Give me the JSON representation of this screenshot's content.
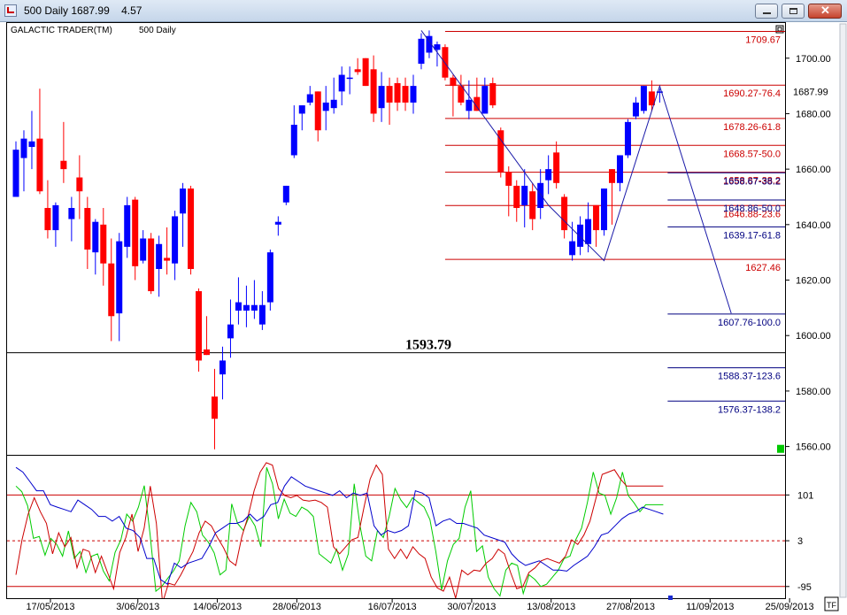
{
  "window": {
    "title": "500 Daily 1687.99    4.57",
    "buttons": [
      "minimize-icon",
      "maximize-icon",
      "close-icon"
    ]
  },
  "chart_data": [
    {
      "type": "candlestick",
      "title": "GALACTIC TRADER(TM)",
      "subtitle": "500 Daily",
      "last_price": "1687.99",
      "up_color": "#0000ff",
      "down_color": "#ff0000",
      "y_ticks": [
        "1700.00",
        "1680.00",
        "1660.00",
        "1640.00",
        "1620.00",
        "1600.00",
        "1580.00",
        "1560.00"
      ],
      "ylim": [
        1557,
        1713
      ],
      "x_ticks": [
        {
          "label": "17/05/2013",
          "i": 1
        },
        {
          "label": "3/06/2013",
          "i": 12
        },
        {
          "label": "14/06/2013",
          "i": 22
        },
        {
          "label": "28/06/2013",
          "i": 32
        },
        {
          "label": "16/07/2013",
          "i": 44
        },
        {
          "label": "30/07/2013",
          "i": 54
        },
        {
          "label": "13/08/2013",
          "i": 64
        },
        {
          "label": "27/08/2013",
          "i": 74
        },
        {
          "label": "11/09/2013",
          "i": 84
        },
        {
          "label": "25/09/2013",
          "i": 94
        }
      ],
      "candles": [
        {
          "o": 1650,
          "h": 1670,
          "l": 1650,
          "c": 1667
        },
        {
          "o": 1664,
          "h": 1674,
          "l": 1652,
          "c": 1671
        },
        {
          "o": 1668,
          "h": 1681,
          "l": 1660,
          "c": 1670
        },
        {
          "o": 1671,
          "h": 1689,
          "l": 1651,
          "c": 1652
        },
        {
          "o": 1646,
          "h": 1656,
          "l": 1635,
          "c": 1638
        },
        {
          "o": 1638,
          "h": 1648,
          "l": 1632,
          "c": 1647
        },
        {
          "o": 1663,
          "h": 1677,
          "l": 1655,
          "c": 1660
        },
        {
          "o": 1642,
          "h": 1650,
          "l": 1634,
          "c": 1646
        },
        {
          "o": 1657,
          "h": 1665,
          "l": 1642,
          "c": 1652
        },
        {
          "o": 1646,
          "h": 1650,
          "l": 1624,
          "c": 1631
        },
        {
          "o": 1630,
          "h": 1642,
          "l": 1622,
          "c": 1641
        },
        {
          "o": 1640,
          "h": 1646,
          "l": 1618,
          "c": 1626
        },
        {
          "o": 1626,
          "h": 1635,
          "l": 1598,
          "c": 1607
        },
        {
          "o": 1608,
          "h": 1637,
          "l": 1598,
          "c": 1634
        },
        {
          "o": 1632,
          "h": 1650,
          "l": 1628,
          "c": 1647
        },
        {
          "o": 1649,
          "h": 1650,
          "l": 1620,
          "c": 1625
        },
        {
          "o": 1627,
          "h": 1638,
          "l": 1626,
          "c": 1635
        },
        {
          "o": 1635,
          "h": 1637,
          "l": 1615,
          "c": 1616
        },
        {
          "o": 1624,
          "h": 1636,
          "l": 1614,
          "c": 1633
        },
        {
          "o": 1628,
          "h": 1639,
          "l": 1622,
          "c": 1627
        },
        {
          "o": 1626,
          "h": 1645,
          "l": 1620,
          "c": 1643
        },
        {
          "o": 1644,
          "h": 1655,
          "l": 1632,
          "c": 1653
        },
        {
          "o": 1653,
          "h": 1654,
          "l": 1622,
          "c": 1624
        },
        {
          "o": 1616,
          "h": 1617,
          "l": 1587,
          "c": 1591
        },
        {
          "o": 1595,
          "h": 1607,
          "l": 1593,
          "c": 1593
        },
        {
          "o": 1578,
          "h": 1588,
          "l": 1559,
          "c": 1570
        },
        {
          "o": 1586,
          "h": 1596,
          "l": 1577,
          "c": 1591
        },
        {
          "o": 1599,
          "h": 1613,
          "l": 1592,
          "c": 1604
        },
        {
          "o": 1609,
          "h": 1621,
          "l": 1604,
          "c": 1612
        },
        {
          "o": 1609,
          "h": 1618,
          "l": 1603,
          "c": 1611
        },
        {
          "o": 1609,
          "h": 1620,
          "l": 1606,
          "c": 1611
        },
        {
          "o": 1604,
          "h": 1616,
          "l": 1602,
          "c": 1611
        },
        {
          "o": 1612,
          "h": 1631,
          "l": 1609,
          "c": 1630
        },
        {
          "o": 1640,
          "h": 1643,
          "l": 1636,
          "c": 1641
        },
        {
          "o": 1648,
          "h": 1654,
          "l": 1647,
          "c": 1654
        },
        {
          "o": 1665,
          "h": 1683,
          "l": 1664,
          "c": 1676
        },
        {
          "o": 1680,
          "h": 1683,
          "l": 1674,
          "c": 1683
        },
        {
          "o": 1684,
          "h": 1690,
          "l": 1683,
          "c": 1687
        },
        {
          "o": 1688,
          "h": 1688,
          "l": 1670,
          "c": 1674
        },
        {
          "o": 1681,
          "h": 1690,
          "l": 1674,
          "c": 1684
        },
        {
          "o": 1682,
          "h": 1693,
          "l": 1680,
          "c": 1685
        },
        {
          "o": 1688,
          "h": 1697,
          "l": 1683,
          "c": 1694
        },
        {
          "o": 1693,
          "h": 1697,
          "l": 1687,
          "c": 1693
        },
        {
          "o": 1696,
          "h": 1700,
          "l": 1694,
          "c": 1695
        },
        {
          "o": 1700,
          "h": 1700,
          "l": 1690,
          "c": 1690
        },
        {
          "o": 1696,
          "h": 1701,
          "l": 1677,
          "c": 1680
        },
        {
          "o": 1682,
          "h": 1695,
          "l": 1677,
          "c": 1690
        },
        {
          "o": 1690,
          "h": 1693,
          "l": 1676,
          "c": 1684
        },
        {
          "o": 1691,
          "h": 1693,
          "l": 1681,
          "c": 1684
        },
        {
          "o": 1690,
          "h": 1693,
          "l": 1681,
          "c": 1684
        },
        {
          "o": 1684,
          "h": 1694,
          "l": 1680,
          "c": 1690
        },
        {
          "o": 1698,
          "h": 1709,
          "l": 1696,
          "c": 1707
        },
        {
          "o": 1702,
          "h": 1710,
          "l": 1700,
          "c": 1708
        },
        {
          "o": 1703,
          "h": 1706,
          "l": 1697,
          "c": 1705
        },
        {
          "o": 1704,
          "h": 1705,
          "l": 1692,
          "c": 1693
        },
        {
          "o": 1693,
          "h": 1694,
          "l": 1679,
          "c": 1690
        },
        {
          "o": 1690,
          "h": 1694,
          "l": 1683,
          "c": 1684
        },
        {
          "o": 1681,
          "h": 1692,
          "l": 1678,
          "c": 1685
        },
        {
          "o": 1686,
          "h": 1693,
          "l": 1681,
          "c": 1681
        },
        {
          "o": 1680,
          "h": 1693,
          "l": 1680,
          "c": 1690
        },
        {
          "o": 1691,
          "h": 1693,
          "l": 1682,
          "c": 1683
        },
        {
          "o": 1674,
          "h": 1675,
          "l": 1657,
          "c": 1659
        },
        {
          "o": 1659,
          "h": 1661,
          "l": 1643,
          "c": 1654
        },
        {
          "o": 1654,
          "h": 1656,
          "l": 1641,
          "c": 1646
        },
        {
          "o": 1647,
          "h": 1660,
          "l": 1639,
          "c": 1654
        },
        {
          "o": 1652,
          "h": 1655,
          "l": 1638,
          "c": 1642
        },
        {
          "o": 1646,
          "h": 1660,
          "l": 1642,
          "c": 1655
        },
        {
          "o": 1656,
          "h": 1665,
          "l": 1651,
          "c": 1660
        },
        {
          "o": 1666,
          "h": 1670,
          "l": 1653,
          "c": 1655
        },
        {
          "o": 1650,
          "h": 1651,
          "l": 1635,
          "c": 1638
        },
        {
          "o": 1629,
          "h": 1641,
          "l": 1627,
          "c": 1634
        },
        {
          "o": 1632,
          "h": 1643,
          "l": 1629,
          "c": 1640
        },
        {
          "o": 1633,
          "h": 1648,
          "l": 1630,
          "c": 1642
        },
        {
          "o": 1647,
          "h": 1647,
          "l": 1632,
          "c": 1638
        },
        {
          "o": 1638,
          "h": 1653,
          "l": 1636,
          "c": 1653
        },
        {
          "o": 1660,
          "h": 1660,
          "l": 1640,
          "c": 1655
        },
        {
          "o": 1655,
          "h": 1665,
          "l": 1652,
          "c": 1665
        },
        {
          "o": 1665,
          "h": 1678,
          "l": 1664,
          "c": 1677
        },
        {
          "o": 1679,
          "h": 1686,
          "l": 1678,
          "c": 1684
        },
        {
          "o": 1681,
          "h": 1690,
          "l": 1680,
          "c": 1690
        },
        {
          "o": 1688,
          "h": 1692,
          "l": 1681,
          "c": 1683
        },
        {
          "o": 1688,
          "h": 1689,
          "l": 1684,
          "c": 1688
        }
      ],
      "zigzag": [
        {
          "i": 51,
          "v": 1710
        },
        {
          "i": 67,
          "v": 1647
        },
        {
          "i": 74,
          "v": 1627
        },
        {
          "i": 81,
          "v": 1690
        },
        {
          "i": 90,
          "v": 1608
        }
      ],
      "levels": [
        {
          "label": "1709.67",
          "v": 1709.67,
          "color": "#cc0000",
          "start": 54
        },
        {
          "label": "1690.27-76.4",
          "v": 1690.27,
          "color": "#cc0000",
          "start": 54
        },
        {
          "label": "1678.26-61.8",
          "v": 1678.26,
          "color": "#cc0000",
          "start": 54
        },
        {
          "label": "1668.57-50.0",
          "v": 1668.57,
          "color": "#cc0000",
          "start": 54
        },
        {
          "label": "1658.87-38.2",
          "v": 1658.87,
          "color": "#cc0000",
          "start": 54
        },
        {
          "label": "1646.88-23.6",
          "v": 1646.88,
          "color": "#cc0000",
          "start": 54
        },
        {
          "label": "1627.46",
          "v": 1627.46,
          "color": "#cc0000",
          "start": 54
        },
        {
          "label": "1658.67-38.2",
          "v": 1658.67,
          "color": "#000080",
          "start": 82
        },
        {
          "label": "1648.86-50.0",
          "v": 1648.86,
          "color": "#000080",
          "start": 82
        },
        {
          "label": "1639.17-61.8",
          "v": 1639.17,
          "color": "#000080",
          "start": 82
        },
        {
          "label": "1607.76-100.0",
          "v": 1607.76,
          "color": "#000080",
          "start": 82
        },
        {
          "label": "1588.37-123.6",
          "v": 1588.37,
          "color": "#000080",
          "start": 82
        },
        {
          "label": "1576.37-138.2",
          "v": 1576.37,
          "color": "#000080",
          "start": 82
        }
      ],
      "horizontal_line": {
        "label": "1593.79",
        "v": 1593.79
      },
      "marker_color": "#00c800"
    },
    {
      "type": "line",
      "panel": "oscillator",
      "y_ticks": [
        "101",
        "3",
        "-95"
      ],
      "ylim": [
        -120,
        185
      ],
      "ref_lines": [
        {
          "v": 101,
          "color": "#cc0000",
          "style": "solid"
        },
        {
          "v": 3,
          "color": "#cc0000",
          "style": "dashed"
        },
        {
          "v": -95,
          "color": "#cc0000",
          "style": "solid"
        }
      ],
      "series": [
        {
          "color": "#00cc00",
          "values": [
            120,
            108,
            78,
            8,
            12,
            -28,
            8,
            -5,
            -30,
            24,
            -35,
            -20,
            -65,
            -30,
            -25,
            -62,
            -83,
            -22,
            5,
            60,
            45,
            75,
            121,
            18,
            -105,
            -95,
            -78,
            -62,
            -40,
            35,
            85,
            65,
            15,
            0,
            -23,
            -70,
            -60,
            82,
            40,
            25,
            55,
            35,
            -10,
            160,
            125,
            50,
            92,
            62,
            55,
            75,
            68,
            55,
            -25,
            -35,
            -45,
            -15,
            -60,
            -25,
            125,
            35,
            -30,
            -40,
            25,
            10,
            55,
            115,
            90,
            74,
            95,
            85,
            75,
            48,
            -20,
            -102,
            -40,
            -5,
            8,
            75,
            110,
            -20,
            -8,
            -75,
            -100,
            -115,
            -60,
            -45,
            -50,
            -110,
            -70,
            -80,
            -95,
            -90,
            -75,
            -60,
            -35,
            -30,
            5,
            30,
            85,
            150,
            105,
            100,
            60,
            95,
            150,
            100,
            84,
            65,
            80,
            80,
            80,
            80
          ]
        },
        {
          "color": "#cc0000",
          "values": [
            -70,
            5,
            60,
            95,
            65,
            40,
            -25,
            20,
            -10,
            10,
            -55,
            -15,
            -20,
            -65,
            -30,
            -65,
            -100,
            -22,
            10,
            60,
            -20,
            30,
            120,
            40,
            -130,
            -88,
            -92,
            -70,
            -45,
            -20,
            20,
            45,
            35,
            10,
            -12,
            -40,
            -50,
            12,
            55,
            110,
            150,
            170,
            165,
            115,
            100,
            95,
            100,
            90,
            88,
            90,
            85,
            75,
            -10,
            -25,
            -10,
            5,
            10,
            75,
            135,
            165,
            145,
            -15,
            -35,
            -15,
            -35,
            -10,
            -25,
            -35,
            -75,
            -98,
            -105,
            -75,
            -120,
            -60,
            -70,
            -60,
            -62,
            -45,
            -35,
            -15,
            -25,
            -65,
            -100,
            -95,
            -65,
            -55,
            -40,
            -35,
            -40,
            -45,
            -30,
            5,
            -5,
            15,
            45,
            95,
            145,
            150,
            155,
            135,
            120,
            120,
            120,
            120,
            120,
            120,
            120
          ]
        },
        {
          "color": "#0000cc",
          "values": [
            160,
            150,
            130,
            110,
            110,
            80,
            75,
            70,
            65,
            90,
            80,
            70,
            55,
            55,
            45,
            55,
            30,
            25,
            10,
            -35,
            -35,
            -80,
            -90,
            -45,
            -55,
            -45,
            -40,
            -35,
            -10,
            20,
            30,
            40,
            40,
            45,
            60,
            45,
            55,
            80,
            85,
            120,
            140,
            130,
            120,
            115,
            110,
            105,
            100,
            110,
            95,
            105,
            100,
            105,
            35,
            15,
            25,
            20,
            25,
            35,
            110,
            105,
            95,
            35,
            45,
            50,
            40,
            40,
            35,
            30,
            15,
            10,
            5,
            0,
            -25,
            -40,
            -50,
            -45,
            -40,
            -50,
            -60,
            -60,
            -62,
            -50,
            -40,
            -30,
            -10,
            15,
            20,
            35,
            50,
            60,
            65,
            75,
            70,
            65,
            60
          ]
        }
      ]
    }
  ],
  "x_ticks_scroll": "TF"
}
